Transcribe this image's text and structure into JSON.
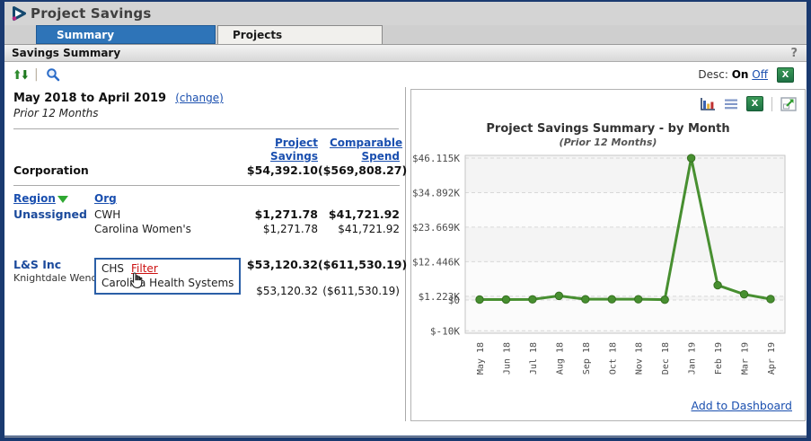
{
  "window": {
    "title": "Project Savings"
  },
  "tabs": {
    "summary": "Summary",
    "projects": "Projects"
  },
  "section": {
    "title": "Savings Summary",
    "help": "?"
  },
  "toolbar": {
    "desc_label": "Desc:",
    "desc_on": "On",
    "desc_off": "Off"
  },
  "filters": {
    "date_range": "May 2018 to April 2019",
    "change_link": "(change)",
    "period_note": "Prior 12 Months"
  },
  "table": {
    "col_project_savings": "Project Savings",
    "col_comparable_spend": "Comparable Spend",
    "col_region": "Region",
    "col_org": "Org",
    "corporation": {
      "label": "Corporation",
      "project_savings": "$54,392.10",
      "comparable_spend": "($569,808.27)"
    },
    "rows": [
      {
        "region": "Unassigned",
        "org_code": "CWH",
        "org_name": "Carolina Women's",
        "project_savings": "$1,271.78",
        "comparable_spend": "$41,721.92",
        "detail_project_savings": "$1,271.78",
        "detail_comparable_spend": "$41,721.92"
      },
      {
        "region": "L&S Inc",
        "region_sub": "Knightdale Wend..",
        "org_code": "CHS",
        "org_filter_link": "Filter",
        "org_name": "Carolina Health Systems",
        "project_savings": "$53,120.32",
        "comparable_spend": "($611,530.19)",
        "detail_project_savings": "$53,120.32",
        "detail_comparable_spend": "($611,530.19)"
      }
    ]
  },
  "chart_panel": {
    "add_to_dashboard": "Add to Dashboard"
  },
  "colors": {
    "window_border": "#1a3a70",
    "active_tab": "#2e74b8",
    "link_blue": "#1a4faf",
    "filter_red": "#cc1111",
    "chart_line_green": "#478f30"
  },
  "chart_data": {
    "type": "line",
    "title": "Project Savings Summary - by Month",
    "subtitle": "(Prior 12 Months)",
    "x": [
      "May 18",
      "Jun 18",
      "Jul 18",
      "Aug 18",
      "Sep 18",
      "Oct 18",
      "Nov 18",
      "Dec 18",
      "Jan 19",
      "Feb 19",
      "Mar 19",
      "Apr 19"
    ],
    "values": [
      150,
      150,
      200,
      1350,
      250,
      250,
      250,
      100,
      46115,
      4800,
      1850,
      300
    ],
    "y_ticks": [
      {
        "label": "$46.115K",
        "value": 46115
      },
      {
        "label": "$34.892K",
        "value": 34892
      },
      {
        "label": "$23.669K",
        "value": 23669
      },
      {
        "label": "$12.446K",
        "value": 12446
      },
      {
        "label": "$1.223K",
        "value": 1223
      },
      {
        "label": "$0",
        "value": 0
      },
      {
        "label": "$-10K",
        "value": -10000
      }
    ],
    "ylim": [
      -10800,
      47000
    ],
    "line_color": "#478f30",
    "grid": "dashed",
    "legend": "none"
  }
}
